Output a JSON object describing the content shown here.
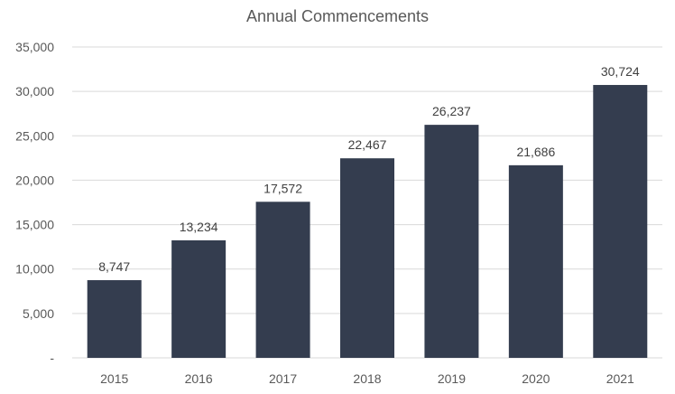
{
  "chart_data": {
    "type": "bar",
    "title": "Annual Commencements",
    "xlabel": "",
    "ylabel": "",
    "categories": [
      "2015",
      "2016",
      "2017",
      "2018",
      "2019",
      "2020",
      "2021"
    ],
    "values": [
      8747,
      13234,
      17572,
      22467,
      26237,
      21686,
      30724
    ],
    "data_labels": [
      "8,747",
      "13,234",
      "17,572",
      "22,467",
      "26,237",
      "21,686",
      "30,724"
    ],
    "ylim": [
      0,
      35000
    ],
    "yticks": [
      0,
      5000,
      10000,
      15000,
      20000,
      25000,
      30000,
      35000
    ],
    "ytick_labels": [
      "-",
      "5,000",
      "10,000",
      "15,000",
      "20,000",
      "25,000",
      "30,000",
      "35,000"
    ],
    "grid": true,
    "legend": "none",
    "bar_color": "#343d4f",
    "grid_color": "#d9d9d9"
  }
}
